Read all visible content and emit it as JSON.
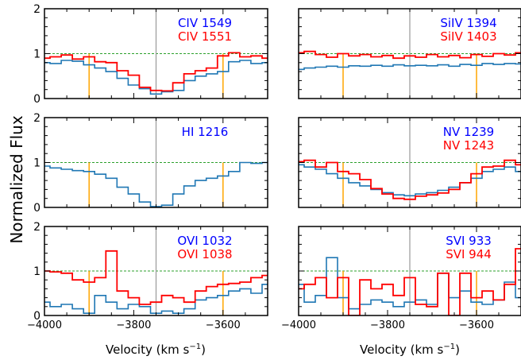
{
  "figure": {
    "ylabel": "Normalized Flux",
    "xlabel_main": "Velocity (km s",
    "xlabel_sup": "−1",
    "xlabel_close": ")",
    "colors": {
      "series1": "#1f77b4",
      "series2": "#ff0000",
      "continuum": "#2ca02c",
      "center": "#999999",
      "marker": "#ffa500",
      "axis": "#000000",
      "label1": "#0000ff",
      "label2": "#ff0000"
    },
    "xlim": [
      -4000,
      -3500
    ],
    "ylim": [
      0,
      2
    ],
    "xticks": [
      -4000,
      -3800,
      -3600
    ],
    "yticks": [
      0,
      1,
      2
    ],
    "center_velocity": -3750,
    "marker_velocities": [
      -3900,
      -3600
    ],
    "continuum_level": 1
  },
  "chart_data": [
    {
      "type": "line",
      "panel": "CIV",
      "labels": [
        "CIV 1549",
        "CIV 1551"
      ],
      "series": [
        {
          "name": "CIV 1549",
          "step": 25,
          "x": [
            -4000,
            -3975,
            -3950,
            -3925,
            -3900,
            -3875,
            -3850,
            -3825,
            -3800,
            -3775,
            -3750,
            -3725,
            -3700,
            -3675,
            -3650,
            -3625,
            -3600,
            -3575,
            -3550,
            -3525,
            -3500
          ],
          "values": [
            0.8,
            0.78,
            0.85,
            0.83,
            0.75,
            0.68,
            0.6,
            0.45,
            0.3,
            0.22,
            0.1,
            0.15,
            0.18,
            0.4,
            0.5,
            0.55,
            0.6,
            0.82,
            0.85,
            0.78,
            0.8
          ]
        },
        {
          "name": "CIV 1551",
          "step": 25,
          "x": [
            -4000,
            -3975,
            -3950,
            -3925,
            -3900,
            -3875,
            -3850,
            -3825,
            -3800,
            -3775,
            -3750,
            -3725,
            -3700,
            -3675,
            -3650,
            -3625,
            -3600,
            -3575,
            -3550,
            -3525,
            -3500
          ],
          "values": [
            0.9,
            0.93,
            0.97,
            0.88,
            0.93,
            0.82,
            0.8,
            0.62,
            0.52,
            0.25,
            0.18,
            0.17,
            0.35,
            0.55,
            0.62,
            0.68,
            0.95,
            1.02,
            0.93,
            0.95,
            0.9
          ]
        }
      ]
    },
    {
      "type": "line",
      "panel": "SiIV",
      "labels": [
        "SiIV 1394",
        "SiIV 1403"
      ],
      "series": [
        {
          "name": "SiIV 1394",
          "step": 25,
          "x": [
            -4000,
            -3975,
            -3950,
            -3925,
            -3900,
            -3875,
            -3850,
            -3825,
            -3800,
            -3775,
            -3750,
            -3725,
            -3700,
            -3675,
            -3650,
            -3625,
            -3600,
            -3575,
            -3550,
            -3525,
            -3500
          ],
          "values": [
            0.65,
            0.68,
            0.7,
            0.72,
            0.7,
            0.73,
            0.72,
            0.74,
            0.72,
            0.75,
            0.73,
            0.74,
            0.73,
            0.75,
            0.72,
            0.76,
            0.74,
            0.78,
            0.76,
            0.78,
            0.77
          ]
        },
        {
          "name": "SiIV 1403",
          "step": 25,
          "x": [
            -4000,
            -3975,
            -3950,
            -3925,
            -3900,
            -3875,
            -3850,
            -3825,
            -3800,
            -3775,
            -3750,
            -3725,
            -3700,
            -3675,
            -3650,
            -3625,
            -3600,
            -3575,
            -3550,
            -3525,
            -3500
          ],
          "values": [
            1.02,
            1.05,
            0.98,
            0.92,
            1.0,
            0.95,
            0.98,
            0.93,
            0.96,
            0.9,
            0.95,
            0.92,
            0.98,
            0.93,
            0.96,
            0.91,
            0.98,
            0.94,
            1.0,
            0.97,
            1.02
          ]
        }
      ]
    },
    {
      "type": "line",
      "panel": "HI",
      "labels": [
        "HI 1216"
      ],
      "series": [
        {
          "name": "HI 1216",
          "step": 25,
          "x": [
            -4000,
            -3975,
            -3950,
            -3925,
            -3900,
            -3875,
            -3850,
            -3825,
            -3800,
            -3775,
            -3750,
            -3725,
            -3700,
            -3675,
            -3650,
            -3625,
            -3600,
            -3575,
            -3550,
            -3525,
            -3500
          ],
          "values": [
            0.92,
            0.88,
            0.85,
            0.82,
            0.8,
            0.74,
            0.65,
            0.45,
            0.3,
            0.12,
            0.02,
            0.05,
            0.3,
            0.48,
            0.6,
            0.65,
            0.7,
            0.8,
            1.0,
            0.98,
            1.0
          ]
        }
      ]
    },
    {
      "type": "line",
      "panel": "NV",
      "labels": [
        "NV 1239",
        "NV 1243"
      ],
      "series": [
        {
          "name": "NV 1239",
          "step": 25,
          "x": [
            -4000,
            -3975,
            -3950,
            -3925,
            -3900,
            -3875,
            -3850,
            -3825,
            -3800,
            -3775,
            -3750,
            -3725,
            -3700,
            -3675,
            -3650,
            -3625,
            -3600,
            -3575,
            -3550,
            -3525,
            -3500
          ],
          "values": [
            0.95,
            0.9,
            0.85,
            0.75,
            0.65,
            0.55,
            0.48,
            0.4,
            0.33,
            0.28,
            0.26,
            0.3,
            0.33,
            0.38,
            0.45,
            0.55,
            0.65,
            0.8,
            0.85,
            0.9,
            0.8
          ]
        },
        {
          "name": "NV 1243",
          "step": 25,
          "x": [
            -4000,
            -3975,
            -3950,
            -3925,
            -3900,
            -3875,
            -3850,
            -3825,
            -3800,
            -3775,
            -3750,
            -3725,
            -3700,
            -3675,
            -3650,
            -3625,
            -3600,
            -3575,
            -3550,
            -3525,
            -3500
          ],
          "values": [
            1.02,
            1.05,
            0.9,
            1.0,
            0.8,
            0.75,
            0.62,
            0.42,
            0.3,
            0.2,
            0.18,
            0.25,
            0.28,
            0.32,
            0.4,
            0.55,
            0.75,
            0.9,
            0.92,
            1.05,
            0.95
          ]
        }
      ]
    },
    {
      "type": "line",
      "panel": "OVI",
      "labels": [
        "OVI 1032",
        "OVI 1038"
      ],
      "series": [
        {
          "name": "OVI 1032",
          "step": 25,
          "x": [
            -4000,
            -3975,
            -3950,
            -3925,
            -3900,
            -3875,
            -3850,
            -3825,
            -3800,
            -3775,
            -3750,
            -3725,
            -3700,
            -3675,
            -3650,
            -3625,
            -3600,
            -3575,
            -3550,
            -3525,
            -3500
          ],
          "values": [
            0.3,
            0.2,
            0.25,
            0.15,
            0.05,
            0.45,
            0.3,
            0.15,
            0.25,
            0.2,
            0.05,
            0.1,
            0.05,
            0.15,
            0.35,
            0.4,
            0.45,
            0.55,
            0.6,
            0.5,
            0.7
          ]
        },
        {
          "name": "OVI 1038",
          "step": 25,
          "x": [
            -4000,
            -3975,
            -3950,
            -3925,
            -3900,
            -3875,
            -3850,
            -3825,
            -3800,
            -3775,
            -3750,
            -3725,
            -3700,
            -3675,
            -3650,
            -3625,
            -3600,
            -3575,
            -3550,
            -3525,
            -3500
          ],
          "values": [
            1.0,
            0.98,
            0.95,
            0.8,
            0.75,
            0.85,
            1.45,
            0.55,
            0.4,
            0.25,
            0.3,
            0.45,
            0.4,
            0.3,
            0.55,
            0.65,
            0.7,
            0.72,
            0.75,
            0.85,
            0.9
          ]
        }
      ]
    },
    {
      "type": "line",
      "panel": "SVI",
      "labels": [
        "SVI 933",
        "SVI 944"
      ],
      "series": [
        {
          "name": "SVI 933",
          "step": 25,
          "x": [
            -4000,
            -3975,
            -3950,
            -3925,
            -3900,
            -3875,
            -3850,
            -3825,
            -3800,
            -3775,
            -3750,
            -3725,
            -3700,
            -3675,
            -3650,
            -3625,
            -3600,
            -3575,
            -3550,
            -3525,
            -3500
          ],
          "values": [
            0.7,
            0.3,
            0.45,
            1.3,
            0.4,
            0.15,
            0.25,
            0.35,
            0.3,
            0.2,
            0.3,
            0.35,
            0.25,
            0.95,
            0.4,
            0.55,
            0.3,
            0.25,
            0.35,
            0.75,
            0.4
          ]
        },
        {
          "name": "SVI 944",
          "step": 25,
          "x": [
            -4000,
            -3975,
            -3950,
            -3925,
            -3900,
            -3875,
            -3850,
            -3825,
            -3800,
            -3775,
            -3750,
            -3725,
            -3700,
            -3675,
            -3650,
            -3625,
            -3600,
            -3575,
            -3550,
            -3525,
            -3500
          ],
          "values": [
            0.6,
            0.7,
            0.85,
            0.4,
            0.85,
            0.0,
            0.8,
            0.6,
            0.7,
            0.45,
            0.85,
            0.25,
            0.2,
            0.95,
            0.0,
            0.95,
            0.4,
            0.55,
            0.35,
            0.7,
            1.5
          ]
        }
      ]
    }
  ]
}
